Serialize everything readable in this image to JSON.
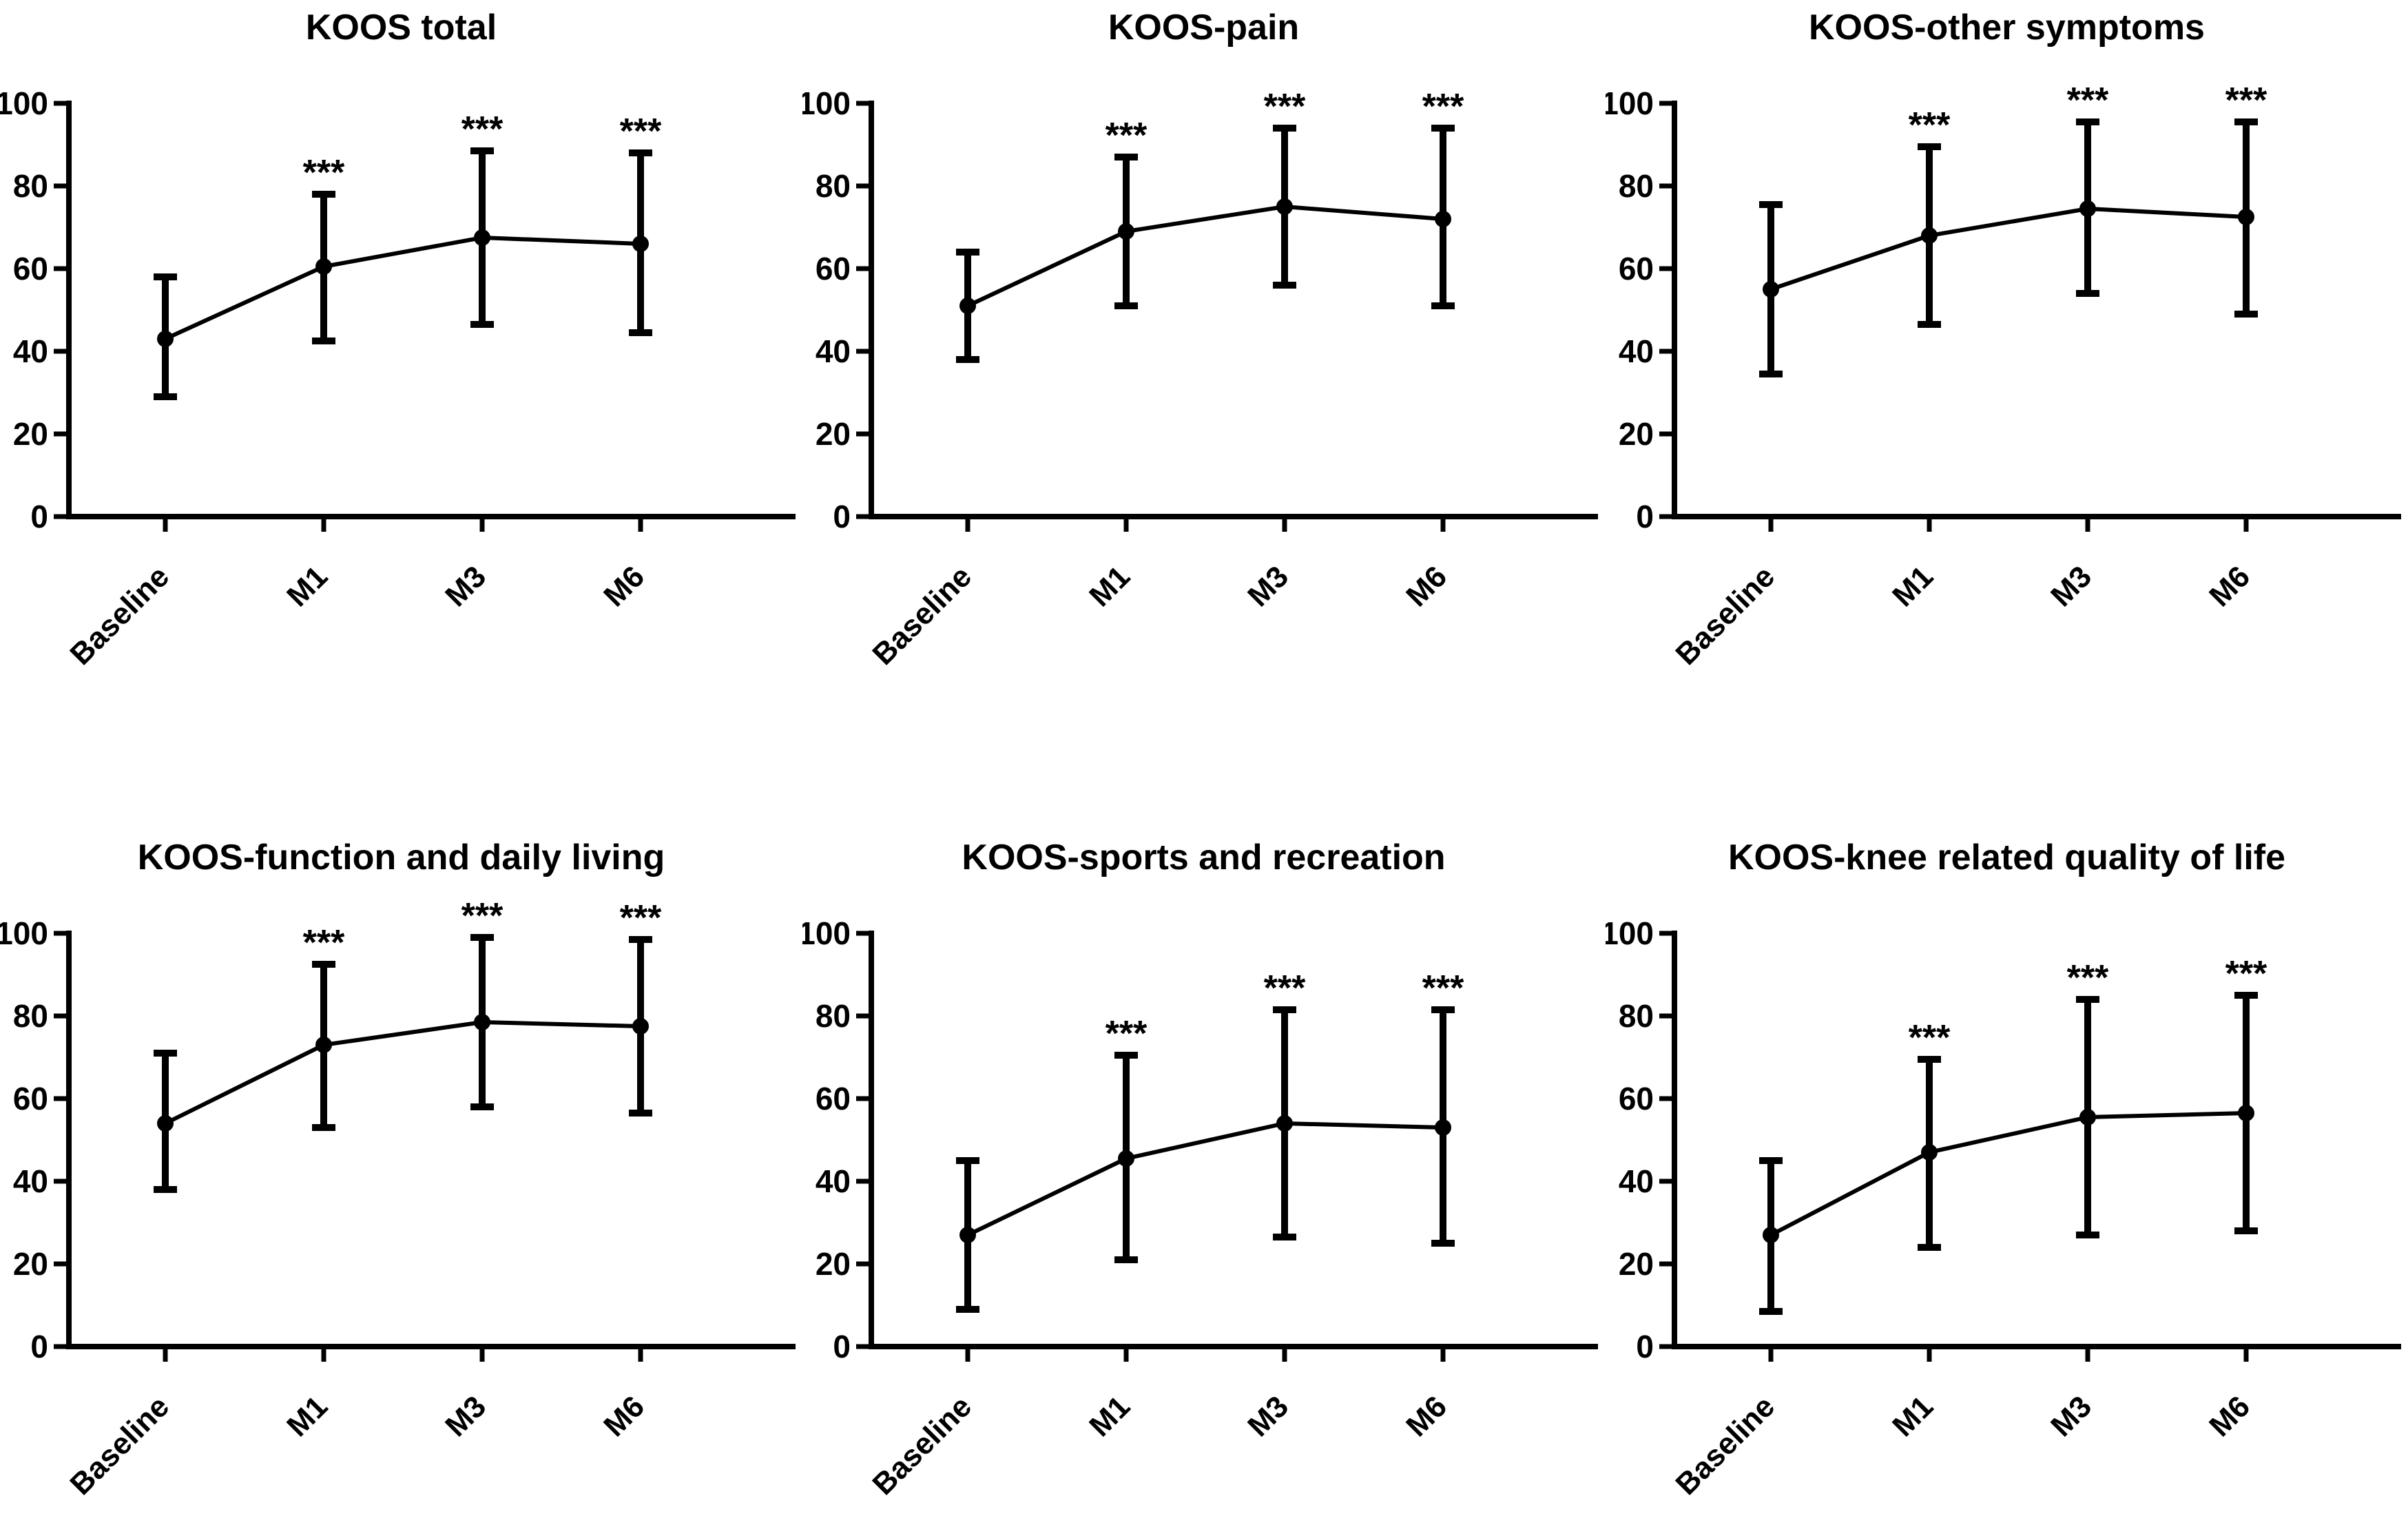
{
  "figure": {
    "background": "#ffffff",
    "ink": "#000000",
    "panels_per_row": 3,
    "marker": "filled-circle",
    "error_bar_style": "capped",
    "significance_symbol": "***"
  },
  "chart_data": [
    {
      "type": "line",
      "title": "KOOS total",
      "categories": [
        "Baseline",
        "M1",
        "M3",
        "M6"
      ],
      "series": [
        {
          "name": "KOOS total mean",
          "values": [
            43,
            60.5,
            67.5,
            66
          ]
        }
      ],
      "error_low": [
        29,
        42.5,
        46.5,
        44.5
      ],
      "error_high": [
        58,
        78,
        88.5,
        88
      ],
      "significance": [
        "",
        "***",
        "***",
        "***"
      ],
      "ylim": [
        0,
        100
      ],
      "yticks": [
        0,
        20,
        40,
        60,
        80,
        100
      ],
      "xlabel": "",
      "ylabel": "",
      "grid": false,
      "legend": "none"
    },
    {
      "type": "line",
      "title": "KOOS-pain",
      "categories": [
        "Baseline",
        "M1",
        "M3",
        "M6"
      ],
      "series": [
        {
          "name": "KOOS-pain mean",
          "values": [
            51,
            69,
            75,
            72
          ]
        }
      ],
      "error_low": [
        38,
        51,
        56,
        51
      ],
      "error_high": [
        64,
        87,
        94,
        94
      ],
      "significance": [
        "",
        "***",
        "***",
        "***"
      ],
      "ylim": [
        0,
        100
      ],
      "yticks": [
        0,
        20,
        40,
        60,
        80,
        100
      ],
      "xlabel": "",
      "ylabel": "",
      "grid": false,
      "legend": "none"
    },
    {
      "type": "line",
      "title": "KOOS-other symptoms",
      "categories": [
        "Baseline",
        "M1",
        "M3",
        "M6"
      ],
      "series": [
        {
          "name": "KOOS-other symptoms mean",
          "values": [
            55,
            68,
            74.5,
            72.5
          ]
        }
      ],
      "error_low": [
        34.5,
        46.5,
        54,
        49
      ],
      "error_high": [
        75.5,
        89.5,
        95.5,
        95.5
      ],
      "significance": [
        "",
        "***",
        "***",
        "***"
      ],
      "ylim": [
        0,
        100
      ],
      "yticks": [
        0,
        20,
        40,
        60,
        80,
        100
      ],
      "xlabel": "",
      "ylabel": "",
      "grid": false,
      "legend": "none"
    },
    {
      "type": "line",
      "title": "KOOS-function and daily living",
      "categories": [
        "Baseline",
        "M1",
        "M3",
        "M6"
      ],
      "series": [
        {
          "name": "KOOS-function and daily living mean",
          "values": [
            54,
            73,
            78.5,
            77.5
          ]
        }
      ],
      "error_low": [
        38,
        53,
        58,
        56.5
      ],
      "error_high": [
        71,
        92.5,
        99,
        98.5
      ],
      "significance": [
        "",
        "***",
        "***",
        "***"
      ],
      "ylim": [
        0,
        100
      ],
      "yticks": [
        0,
        20,
        40,
        60,
        80,
        100
      ],
      "xlabel": "",
      "ylabel": "",
      "grid": false,
      "legend": "none"
    },
    {
      "type": "line",
      "title": "KOOS-sports and recreation",
      "categories": [
        "Baseline",
        "M1",
        "M3",
        "M6"
      ],
      "series": [
        {
          "name": "KOOS-sports and recreation mean",
          "values": [
            27,
            45.5,
            54,
            53
          ]
        }
      ],
      "error_low": [
        9,
        21,
        26.5,
        25
      ],
      "error_high": [
        45,
        70.5,
        81.5,
        81.5
      ],
      "significance": [
        "",
        "***",
        "***",
        "***"
      ],
      "ylim": [
        0,
        100
      ],
      "yticks": [
        0,
        20,
        40,
        60,
        80,
        100
      ],
      "xlabel": "",
      "ylabel": "",
      "grid": false,
      "legend": "none"
    },
    {
      "type": "line",
      "title": "KOOS-knee related quality of life",
      "categories": [
        "Baseline",
        "M1",
        "M3",
        "M6"
      ],
      "series": [
        {
          "name": "KOOS-knee related quality of life mean",
          "values": [
            27,
            47,
            55.5,
            56.5
          ]
        }
      ],
      "error_low": [
        8.5,
        24,
        27,
        28
      ],
      "error_high": [
        45,
        69.5,
        84,
        85
      ],
      "significance": [
        "",
        "***",
        "***",
        "***"
      ],
      "ylim": [
        0,
        100
      ],
      "yticks": [
        0,
        20,
        40,
        60,
        80,
        100
      ],
      "xlabel": "",
      "ylabel": "",
      "grid": false,
      "legend": "none"
    }
  ]
}
